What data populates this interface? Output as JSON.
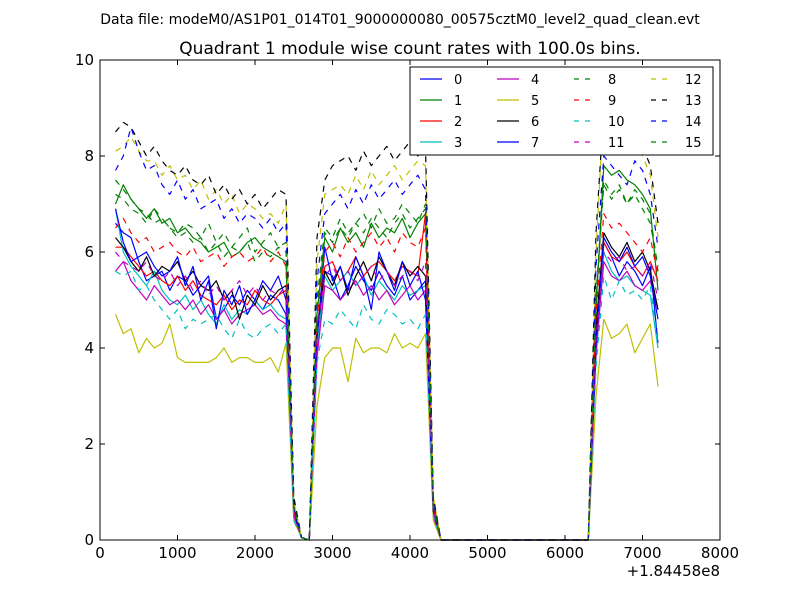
{
  "chart_data": {
    "type": "line",
    "suptitle": "Data file: modeM0/AS1P01_014T01_9000000080_00575cztM0_level2_quad_clean.evt",
    "title": "Quadrant 1 module wise count rates with 100.0s bins.",
    "xlabel": "",
    "ylabel": "",
    "x_offset_label": "+1.84458e8",
    "xlim": [
      0,
      8000
    ],
    "ylim": [
      0,
      10
    ],
    "x_ticks": [
      "0",
      "1000",
      "2000",
      "3000",
      "4000",
      "5000",
      "6000",
      "7000",
      "8000"
    ],
    "y_ticks": [
      "0",
      "2",
      "4",
      "6",
      "8",
      "10"
    ],
    "grid": false,
    "legend_position": "top-right",
    "x": [
      200,
      300,
      400,
      500,
      600,
      700,
      800,
      900,
      1000,
      1100,
      1200,
      1300,
      1400,
      1500,
      1600,
      1700,
      1800,
      1900,
      2000,
      2100,
      2200,
      2300,
      2400,
      2500,
      2600,
      2700,
      2800,
      2900,
      3000,
      3100,
      3200,
      3300,
      3400,
      3500,
      3600,
      3700,
      3800,
      3900,
      4000,
      4100,
      4200,
      4300,
      4400,
      6300,
      6400,
      6500,
      6600,
      6700,
      6800,
      6900,
      7000,
      7100,
      7200
    ],
    "series": [
      {
        "name": "0",
        "color": "#0000ff",
        "dash": "solid",
        "values": [
          6.6,
          6.4,
          6.3,
          5.8,
          5.4,
          5.5,
          5.6,
          5.2,
          5.5,
          5.4,
          5.1,
          5.3,
          5.5,
          4.6,
          4.8,
          5.1,
          4.9,
          5.2,
          5.0,
          4.8,
          5.1,
          5.0,
          4.7,
          0.6,
          0.05,
          0,
          4.1,
          5.6,
          5.5,
          5.0,
          5.3,
          5.7,
          5.4,
          5.2,
          5.6,
          5.3,
          5.1,
          5.5,
          5.0,
          5.2,
          5.4,
          0.6,
          0,
          0,
          4.0,
          6.2,
          5.9,
          5.5,
          5.8,
          5.6,
          5.3,
          5.7,
          4.1
        ]
      },
      {
        "name": "1",
        "color": "#008000",
        "dash": "solid",
        "values": [
          7.0,
          7.4,
          7.1,
          6.9,
          6.7,
          6.9,
          6.6,
          6.7,
          6.4,
          6.5,
          6.3,
          6.2,
          6.0,
          6.1,
          6.2,
          5.9,
          6.0,
          6.2,
          6.3,
          6.1,
          6.0,
          5.9,
          5.8,
          0.7,
          0.05,
          0,
          4.7,
          6.3,
          6.0,
          6.5,
          6.2,
          6.4,
          6.1,
          6.6,
          6.3,
          6.5,
          6.4,
          6.7,
          6.3,
          6.6,
          6.8,
          0.7,
          0,
          0,
          4.8,
          7.8,
          7.6,
          7.7,
          7.5,
          7.4,
          7.2,
          6.9,
          5.2
        ]
      },
      {
        "name": "2",
        "color": "#ff0000",
        "dash": "solid",
        "values": [
          6.1,
          6.1,
          5.9,
          5.7,
          5.5,
          5.6,
          5.4,
          5.3,
          5.5,
          5.2,
          5.4,
          5.1,
          5.0,
          4.9,
          5.1,
          4.8,
          5.0,
          4.9,
          5.2,
          5.0,
          4.9,
          5.1,
          5.2,
          0.6,
          0.05,
          0,
          4.4,
          5.7,
          5.8,
          5.4,
          5.6,
          5.9,
          5.5,
          5.7,
          5.8,
          5.6,
          5.4,
          5.7,
          5.6,
          5.5,
          6.8,
          0.6,
          0,
          0,
          4.3,
          6.2,
          5.9,
          5.8,
          6.0,
          5.7,
          5.5,
          5.8,
          5.4
        ]
      },
      {
        "name": "3",
        "color": "#00bfbf",
        "dash": "solid",
        "values": [
          6.9,
          6.0,
          5.7,
          5.5,
          5.3,
          5.6,
          5.2,
          5.0,
          4.9,
          5.1,
          4.8,
          5.0,
          4.7,
          4.5,
          4.9,
          4.6,
          4.8,
          4.7,
          5.0,
          4.8,
          4.9,
          4.7,
          4.6,
          0.5,
          0.05,
          0,
          4.0,
          5.5,
          5.2,
          5.4,
          5.6,
          5.3,
          5.5,
          5.1,
          5.4,
          5.2,
          5.0,
          5.3,
          5.1,
          5.2,
          5.3,
          0.5,
          0,
          0,
          3.8,
          6.0,
          5.6,
          5.4,
          5.5,
          5.3,
          5.2,
          5.1,
          4.0
        ]
      },
      {
        "name": "4",
        "color": "#bf00bf",
        "dash": "solid",
        "values": [
          5.6,
          5.8,
          5.4,
          5.2,
          5.0,
          5.3,
          5.1,
          4.9,
          5.0,
          4.8,
          5.0,
          4.7,
          4.9,
          4.6,
          4.8,
          4.5,
          4.7,
          4.8,
          4.9,
          4.7,
          4.8,
          4.6,
          4.5,
          0.5,
          0.05,
          0,
          3.8,
          5.3,
          5.2,
          5.0,
          5.2,
          5.4,
          5.1,
          5.3,
          5.0,
          5.2,
          4.9,
          5.1,
          5.3,
          5.0,
          5.2,
          0.5,
          0,
          0,
          3.9,
          5.8,
          5.5,
          5.4,
          5.6,
          5.3,
          5.2,
          5.4,
          4.8
        ]
      },
      {
        "name": "5",
        "color": "#bfbf00",
        "dash": "solid",
        "values": [
          4.7,
          4.3,
          4.4,
          3.9,
          4.2,
          4.0,
          4.1,
          4.5,
          3.8,
          3.7,
          3.7,
          3.7,
          3.7,
          3.8,
          4.0,
          3.7,
          3.8,
          3.8,
          3.7,
          3.7,
          3.8,
          3.5,
          4.1,
          0.4,
          0.05,
          0,
          2.8,
          3.8,
          4.0,
          4.0,
          3.3,
          4.2,
          3.9,
          4.0,
          4.0,
          3.9,
          4.3,
          4.0,
          4.1,
          4.0,
          4.3,
          0.4,
          0,
          0,
          3.0,
          4.6,
          4.2,
          4.3,
          4.5,
          3.9,
          4.2,
          4.5,
          3.2
        ]
      },
      {
        "name": "6",
        "color": "#000000",
        "dash": "solid",
        "values": [
          6.3,
          6.1,
          5.8,
          5.6,
          5.9,
          5.5,
          5.7,
          5.6,
          5.8,
          5.4,
          5.6,
          5.3,
          5.2,
          5.4,
          5.0,
          5.2,
          4.6,
          5.1,
          4.9,
          5.3,
          5.0,
          5.2,
          5.3,
          0.6,
          0.05,
          0,
          4.3,
          5.6,
          5.3,
          5.7,
          5.1,
          5.5,
          5.8,
          5.4,
          5.9,
          5.6,
          5.3,
          5.8,
          5.5,
          5.7,
          5.5,
          0.6,
          0,
          0,
          4.4,
          6.4,
          6.1,
          5.9,
          6.2,
          5.8,
          6.0,
          5.6,
          4.8
        ]
      },
      {
        "name": "7",
        "color": "#0000ff",
        "dash": "solid",
        "values": [
          6.9,
          6.2,
          5.8,
          5.9,
          6.0,
          5.7,
          5.5,
          5.6,
          5.9,
          5.3,
          5.7,
          5.0,
          5.4,
          4.4,
          5.2,
          4.9,
          5.3,
          4.7,
          5.0,
          5.4,
          5.2,
          5.5,
          5.0,
          0.6,
          0.05,
          0,
          4.2,
          6.1,
          5.4,
          5.7,
          5.2,
          5.9,
          5.5,
          4.8,
          6.0,
          5.6,
          5.2,
          5.8,
          5.3,
          5.6,
          5.0,
          0.6,
          0,
          0,
          4.1,
          6.3,
          6.0,
          5.8,
          6.1,
          5.7,
          5.9,
          5.5,
          4.6
        ]
      },
      {
        "name": "8",
        "color": "#008000",
        "dash": "dashed",
        "values": [
          7.2,
          7.1,
          6.9,
          6.8,
          6.6,
          6.9,
          6.7,
          6.5,
          6.4,
          6.6,
          6.5,
          6.3,
          6.6,
          6.2,
          6.4,
          6.1,
          6.3,
          6.5,
          6.0,
          6.2,
          6.4,
          6.1,
          6.2,
          0.7,
          0.05,
          0,
          5.0,
          6.5,
          6.3,
          6.7,
          6.4,
          6.6,
          6.8,
          6.5,
          6.9,
          6.6,
          6.7,
          7.0,
          6.8,
          6.6,
          7.0,
          0.8,
          0,
          0,
          5.1,
          7.5,
          7.2,
          7.4,
          7.0,
          7.3,
          7.1,
          6.8,
          5.6
        ]
      },
      {
        "name": "9",
        "color": "#ff0000",
        "dash": "dashed",
        "values": [
          6.5,
          6.7,
          6.4,
          6.2,
          6.3,
          6.0,
          6.1,
          6.2,
          6.0,
          5.9,
          6.1,
          5.8,
          5.9,
          6.0,
          5.7,
          5.9,
          6.0,
          5.8,
          5.9,
          6.1,
          5.8,
          6.0,
          5.7,
          0.6,
          0.05,
          0,
          4.6,
          6.0,
          6.2,
          5.9,
          6.3,
          6.0,
          6.2,
          6.4,
          6.1,
          6.3,
          6.0,
          6.4,
          6.2,
          6.1,
          6.5,
          0.7,
          0,
          0,
          4.7,
          6.8,
          6.5,
          6.6,
          6.4,
          6.2,
          6.0,
          6.3,
          5.5
        ]
      },
      {
        "name": "10",
        "color": "#00bfbf",
        "dash": "dashed",
        "values": [
          5.6,
          5.5,
          5.6,
          5.2,
          5.3,
          5.0,
          4.8,
          4.6,
          4.8,
          4.4,
          4.6,
          4.5,
          4.6,
          4.7,
          4.4,
          4.2,
          4.6,
          4.3,
          4.2,
          4.4,
          4.5,
          4.3,
          4.5,
          0.4,
          0.05,
          0,
          3.7,
          4.6,
          4.5,
          4.8,
          4.6,
          4.4,
          4.9,
          4.6,
          4.5,
          4.8,
          4.7,
          4.5,
          4.6,
          4.4,
          4.7,
          0.5,
          0,
          0,
          3.6,
          5.5,
          5.0,
          5.4,
          5.1,
          5.2,
          5.0,
          5.3,
          4.1
        ]
      },
      {
        "name": "11",
        "color": "#bf00bf",
        "dash": "dashed",
        "values": [
          6.0,
          5.8,
          5.7,
          5.6,
          5.8,
          5.5,
          5.4,
          5.6,
          5.3,
          5.5,
          5.2,
          5.4,
          5.1,
          5.3,
          5.0,
          5.2,
          5.4,
          5.1,
          5.3,
          5.0,
          5.2,
          5.1,
          5.3,
          0.5,
          0.05,
          0,
          4.3,
          5.5,
          5.7,
          5.4,
          5.6,
          5.3,
          5.5,
          5.7,
          5.4,
          5.6,
          5.3,
          5.5,
          5.6,
          5.4,
          5.8,
          0.6,
          0,
          0,
          4.2,
          6.0,
          5.8,
          5.9,
          5.6,
          5.7,
          5.5,
          5.8,
          5.0
        ]
      },
      {
        "name": "12",
        "color": "#bfbf00",
        "dash": "dashed",
        "values": [
          8.1,
          8.2,
          8.4,
          8.1,
          7.9,
          7.9,
          7.6,
          7.8,
          7.5,
          7.6,
          7.3,
          7.5,
          7.1,
          7.3,
          7.0,
          7.2,
          6.8,
          7.0,
          6.9,
          6.7,
          6.8,
          6.6,
          7.0,
          0.8,
          0.05,
          0,
          5.8,
          7.2,
          7.3,
          7.4,
          7.2,
          7.6,
          7.3,
          7.7,
          7.4,
          7.6,
          7.8,
          7.5,
          7.7,
          7.9,
          7.8,
          0.9,
          0,
          0,
          6.0,
          9.1,
          8.8,
          8.9,
          8.5,
          8.3,
          8.0,
          7.6,
          6.3
        ]
      },
      {
        "name": "13",
        "color": "#000000",
        "dash": "dashed",
        "values": [
          8.5,
          8.7,
          8.6,
          8.3,
          8.0,
          8.2,
          7.9,
          7.7,
          7.6,
          7.8,
          7.5,
          7.4,
          7.6,
          7.2,
          7.4,
          7.1,
          7.3,
          7.0,
          7.2,
          6.9,
          7.1,
          7.3,
          7.2,
          0.9,
          0.05,
          0,
          6.3,
          7.5,
          7.8,
          7.9,
          8.0,
          7.7,
          8.1,
          7.8,
          8.0,
          8.2,
          7.9,
          8.1,
          8.3,
          8.0,
          8.2,
          0.9,
          0,
          0,
          6.4,
          9.0,
          8.7,
          8.8,
          9.0,
          8.6,
          8.2,
          7.8,
          6.6
        ]
      },
      {
        "name": "14",
        "color": "#0000ff",
        "dash": "dashed",
        "values": [
          7.7,
          8.0,
          8.6,
          8.1,
          7.7,
          7.8,
          7.4,
          7.2,
          7.5,
          7.1,
          7.3,
          6.9,
          7.0,
          7.1,
          6.7,
          6.9,
          6.6,
          6.8,
          6.7,
          6.5,
          6.7,
          6.4,
          6.6,
          0.7,
          0.05,
          0,
          5.4,
          6.8,
          7.0,
          7.2,
          6.9,
          7.3,
          7.0,
          7.4,
          7.1,
          7.3,
          7.5,
          7.2,
          7.4,
          7.6,
          7.3,
          0.8,
          0,
          0,
          5.7,
          8.0,
          7.8,
          7.6,
          7.4,
          7.9,
          7.7,
          7.2,
          6.1
        ]
      },
      {
        "name": "15",
        "color": "#008000",
        "dash": "dashed",
        "values": [
          7.5,
          7.3,
          7.1,
          6.9,
          6.8,
          6.6,
          6.7,
          6.5,
          6.3,
          6.4,
          6.2,
          6.3,
          6.0,
          6.2,
          5.9,
          6.1,
          6.0,
          6.2,
          5.8,
          6.0,
          5.9,
          6.1,
          6.0,
          0.7,
          0.05,
          0,
          4.9,
          6.4,
          6.2,
          6.5,
          6.3,
          6.6,
          6.4,
          6.7,
          6.5,
          6.3,
          6.6,
          6.8,
          6.5,
          6.7,
          6.9,
          0.7,
          0,
          0,
          5.0,
          7.4,
          7.1,
          7.3,
          7.0,
          7.2,
          6.9,
          6.6,
          5.7
        ]
      }
    ]
  }
}
